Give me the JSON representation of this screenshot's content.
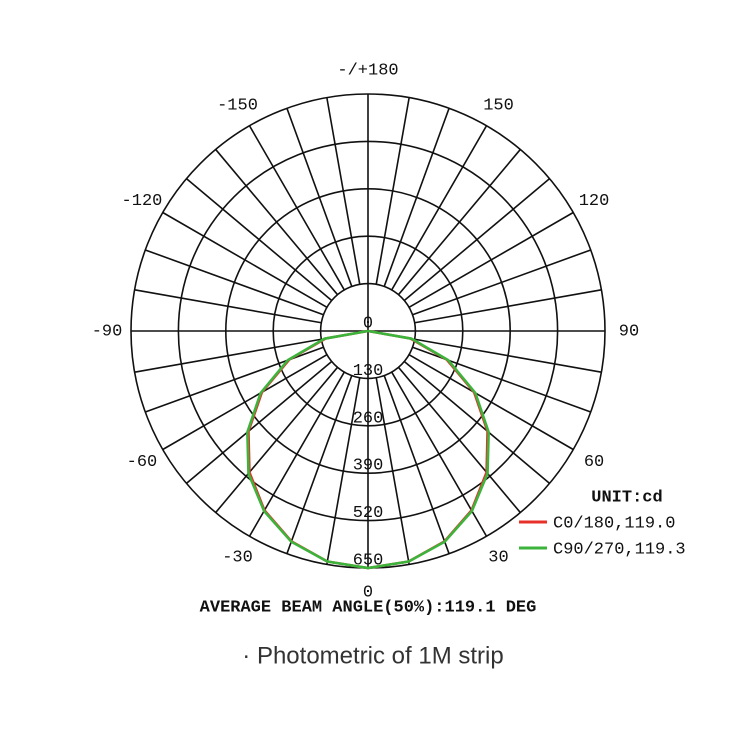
{
  "chart_data": {
    "type": "polar",
    "theta": [
      -90,
      -80,
      -70,
      -60,
      -50,
      -40,
      -30,
      -20,
      -10,
      0,
      10,
      20,
      30,
      40,
      50,
      60,
      70,
      80,
      90
    ],
    "series": [
      {
        "name": "C0/180,119.0",
        "color": "#e8302a",
        "values": [
          0,
          118,
          230,
          336,
          428,
          506,
          568,
          614,
          642,
          650,
          642,
          614,
          568,
          506,
          428,
          336,
          230,
          118,
          0
        ]
      },
      {
        "name": "C90/270,119.3",
        "color": "#3cb43c",
        "values": [
          0,
          121,
          234,
          340,
          432,
          510,
          570,
          615,
          642,
          650,
          642,
          615,
          570,
          510,
          432,
          340,
          234,
          121,
          0
        ]
      }
    ],
    "rlim": [
      0,
      650
    ],
    "rticks": [
      0,
      130,
      260,
      390,
      520,
      650
    ],
    "thetaticks": [
      0,
      30,
      60,
      90,
      120,
      150,
      {
        "value": 180,
        "label": "-/+180"
      },
      -150,
      -120,
      -90,
      -60,
      -30
    ],
    "unit": "UNIT:cd",
    "annotation": "AVERAGE BEAM ANGLE(50%):119.1 DEG",
    "caption": "· Photometric of 1M strip"
  }
}
